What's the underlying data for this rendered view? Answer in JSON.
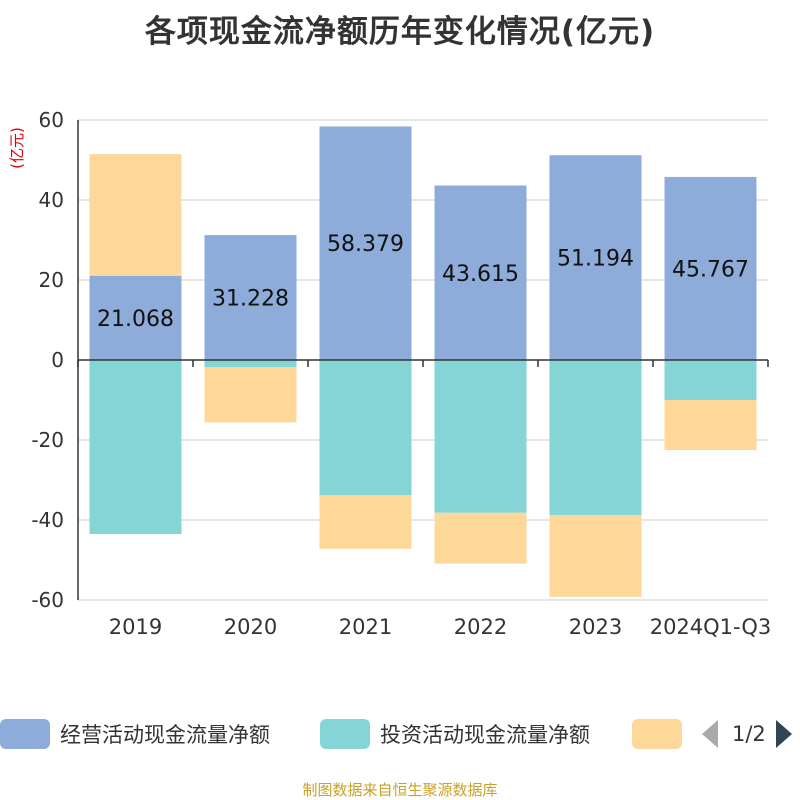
{
  "title": "各项现金流净额历年变化情况(亿元)",
  "source": "制图数据来自恒生聚源数据库",
  "legend": {
    "items": [
      {
        "label": "经营活动现金流量净额",
        "color": "#8eacd9"
      },
      {
        "label": "投资活动现金流量净额",
        "color": "#86d5d6"
      },
      {
        "label": "",
        "color": "#fdd898"
      }
    ],
    "page": "1/2"
  },
  "chart_data": {
    "type": "bar",
    "stacked": true,
    "title": "各项现金流净额历年变化情况(亿元)",
    "ylabel": "(亿元)",
    "ylim": [
      -60,
      60
    ],
    "yticks": [
      60,
      40,
      20,
      0,
      -20,
      -40,
      -60
    ],
    "categories": [
      "2019",
      "2020",
      "2021",
      "2022",
      "2023",
      "2024Q1-Q3"
    ],
    "series": [
      {
        "name": "经营活动现金流量净额",
        "color": "#8eacd9",
        "values": [
          21.068,
          31.228,
          58.379,
          43.615,
          51.194,
          45.767
        ],
        "labels": [
          "21.068",
          "31.228",
          "58.379",
          "43.615",
          "51.194",
          "45.767"
        ]
      },
      {
        "name": "投资活动现金流量净额",
        "color": "#86d5d6",
        "values": [
          -43.5,
          -1.8,
          -33.8,
          -38.2,
          -38.8,
          -10.0
        ]
      },
      {
        "name": "",
        "color": "#fdd898",
        "values": [
          30.4,
          -13.8,
          -13.4,
          -12.7,
          -20.4,
          -12.5
        ]
      }
    ]
  }
}
